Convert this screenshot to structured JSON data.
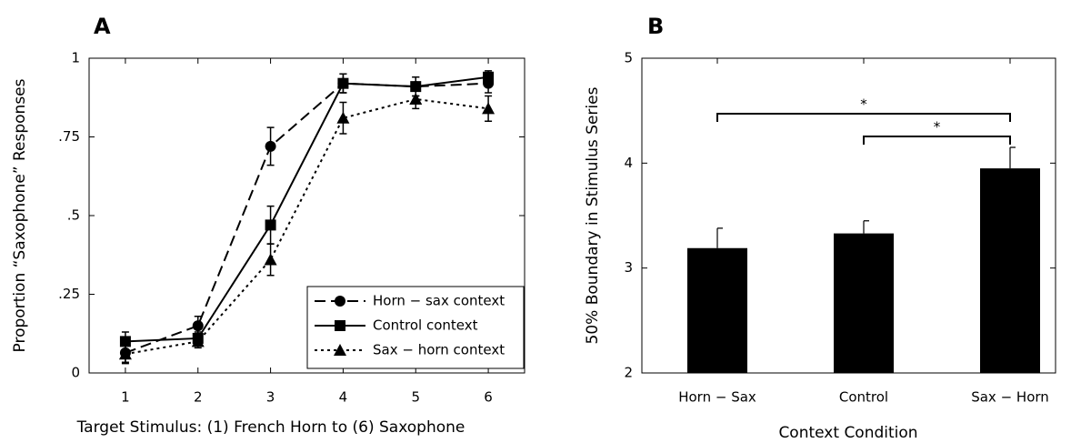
{
  "chart_data": [
    {
      "type": "line",
      "title": "A",
      "xlabel": "Target Stimulus: (1) French Horn to (6) Saxophone",
      "ylabel": "Proportion “Saxophone” Responses",
      "x": [
        1,
        2,
        3,
        4,
        5,
        6
      ],
      "xlim": [
        0.5,
        6.5
      ],
      "xticks": [
        1,
        2,
        3,
        4,
        5,
        6
      ],
      "ylim": [
        0,
        1
      ],
      "yticks": [
        0,
        {
          "value": 0.25,
          "label": ".25"
        },
        {
          "value": 0.5,
          "label": ".5"
        },
        {
          "value": 0.75,
          "label": ".75"
        },
        1
      ],
      "legend": "lower right",
      "series": [
        {
          "name": "Horn − sax context",
          "color": "#000000",
          "dash": "dashed",
          "marker": "circle",
          "values": [
            0.064,
            0.15,
            0.72,
            0.92,
            0.91,
            0.92
          ],
          "errors": [
            0.03,
            0.03,
            0.06,
            0.03,
            0.03,
            0.03
          ]
        },
        {
          "name": "Control context",
          "color": "#000000",
          "dash": "solid",
          "marker": "square",
          "values": [
            0.1,
            0.11,
            0.47,
            0.92,
            0.91,
            0.94
          ],
          "errors": [
            0.03,
            0.02,
            0.06,
            0.03,
            0.03,
            0.02
          ]
        },
        {
          "name": "Sax − horn context",
          "color": "#000000",
          "dash": "dotted",
          "marker": "triangle",
          "values": [
            0.06,
            0.1,
            0.36,
            0.81,
            0.87,
            0.84
          ],
          "errors": [
            0.03,
            0.02,
            0.05,
            0.05,
            0.03,
            0.04
          ]
        }
      ]
    },
    {
      "type": "bar",
      "title": "B",
      "xlabel": "Context Condition",
      "ylabel": "50% Boundary in Stimulus Series",
      "categories": [
        "Horn − Sax",
        "Control",
        "Sax − Horn"
      ],
      "values": [
        3.19,
        3.33,
        3.95
      ],
      "errors": [
        0.19,
        0.12,
        0.2
      ],
      "color": "#000000",
      "ylim": [
        2,
        5
      ],
      "yticks": [
        2,
        3,
        4,
        5
      ],
      "significance": [
        {
          "between": [
            0,
            2
          ],
          "label": "*"
        },
        {
          "between": [
            1,
            2
          ],
          "label": "*"
        }
      ]
    }
  ]
}
